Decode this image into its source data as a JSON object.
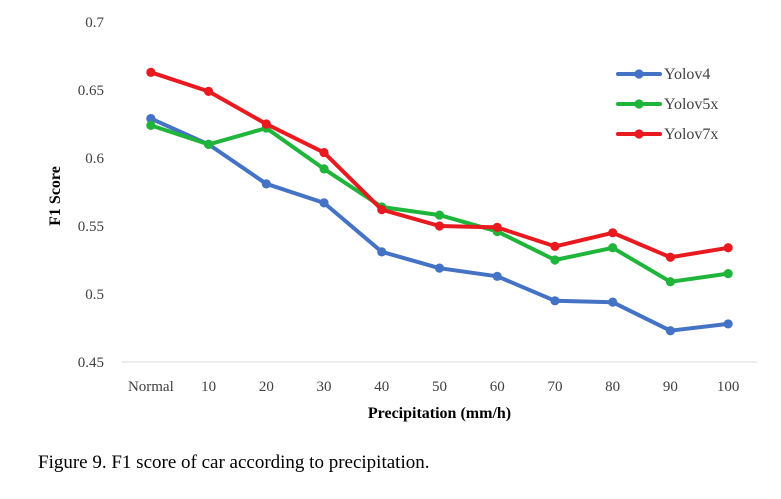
{
  "caption": "Figure 9. F1 score of car according to precipitation.",
  "chart_data": {
    "type": "line",
    "title": "",
    "xlabel": "Precipitation (mm/h)",
    "ylabel": "F1 Score",
    "categories": [
      "Normal",
      "10",
      "20",
      "30",
      "40",
      "50",
      "60",
      "70",
      "80",
      "90",
      "100"
    ],
    "ylim": [
      0.45,
      0.7
    ],
    "yticks": [
      0.45,
      0.5,
      0.55,
      0.6,
      0.65,
      0.7
    ],
    "ytick_labels": [
      "0.45",
      "0.5",
      "0.55",
      "0.6",
      "0.65",
      "0.7"
    ],
    "grid": false,
    "legend_position": "top-right",
    "series": [
      {
        "name": "Yolov4",
        "color": "#4472C4",
        "values": [
          0.629,
          0.61,
          0.581,
          0.567,
          0.531,
          0.519,
          0.513,
          0.495,
          0.494,
          0.473,
          0.478
        ]
      },
      {
        "name": "Yolov5x",
        "color": "#1FB53A",
        "values": [
          0.624,
          0.61,
          0.622,
          0.592,
          0.564,
          0.558,
          0.546,
          0.525,
          0.534,
          0.509,
          0.515
        ]
      },
      {
        "name": "Yolov7x",
        "color": "#E8191F",
        "values": [
          0.663,
          0.649,
          0.625,
          0.604,
          0.562,
          0.55,
          0.549,
          0.535,
          0.545,
          0.527,
          0.534
        ]
      }
    ]
  }
}
